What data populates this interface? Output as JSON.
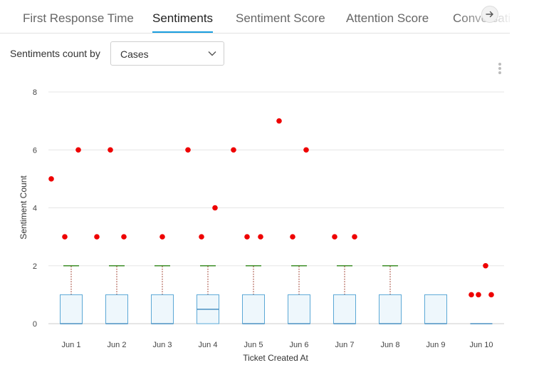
{
  "tabs": [
    {
      "label": "First Response Time",
      "active": false
    },
    {
      "label": "Sentiments",
      "active": true
    },
    {
      "label": "Sentiment Score",
      "active": false
    },
    {
      "label": "Attention Score",
      "active": false
    },
    {
      "label": "Conversations",
      "active": false
    }
  ],
  "controls": {
    "group_label": "Sentiments count by",
    "select_value": "Cases"
  },
  "colors": {
    "accent": "#1a9ee0",
    "box_fill": "#eef7fc",
    "box_stroke": "#5ba8d6",
    "median": "#4a90c2",
    "whisker": "#a04030",
    "whisker_cap": "#3f8f2a",
    "outlier": "#ee0000",
    "grid": "#e6e6e6"
  },
  "chart_data": {
    "type": "boxplot",
    "xlabel": "Ticket Created At",
    "ylabel": "Sentiment Count",
    "ylim": [
      0,
      8
    ],
    "yticks": [
      0,
      2,
      4,
      6,
      8
    ],
    "grid": true,
    "categories": [
      "Jun 1",
      "Jun 2",
      "Jun 3",
      "Jun 4",
      "Jun 5",
      "Jun 6",
      "Jun 7",
      "Jun 8",
      "Jun 9",
      "Jun 10"
    ],
    "boxes": [
      {
        "q1": 0,
        "median": 0,
        "q3": 1,
        "whisker_high": 2,
        "outliers": [
          5,
          3,
          6
        ]
      },
      {
        "q1": 0,
        "median": 0,
        "q3": 1,
        "whisker_high": 2,
        "outliers": [
          3,
          6,
          3
        ]
      },
      {
        "q1": 0,
        "median": 0,
        "q3": 1,
        "whisker_high": 2,
        "outliers": [
          3
        ]
      },
      {
        "q1": 0,
        "median": 0.5,
        "q3": 1,
        "whisker_high": 2,
        "outliers": [
          6,
          3,
          4
        ]
      },
      {
        "q1": 0,
        "median": 0,
        "q3": 1,
        "whisker_high": 2,
        "outliers": [
          6,
          3,
          3
        ]
      },
      {
        "q1": 0,
        "median": 0,
        "q3": 1,
        "whisker_high": 2,
        "outliers": [
          7,
          3,
          6
        ]
      },
      {
        "q1": 0,
        "median": 0,
        "q3": 1,
        "whisker_high": 2,
        "outliers": [
          3,
          3
        ]
      },
      {
        "q1": 0,
        "median": 0,
        "q3": 1,
        "whisker_high": 2,
        "outliers": []
      },
      {
        "q1": 0,
        "median": 0,
        "q3": 1,
        "whisker_high": 1,
        "outliers": []
      },
      {
        "q1": 0,
        "median": 0,
        "q3": 0,
        "whisker_high": 0,
        "outliers": [
          1,
          1,
          2,
          1
        ]
      }
    ]
  }
}
